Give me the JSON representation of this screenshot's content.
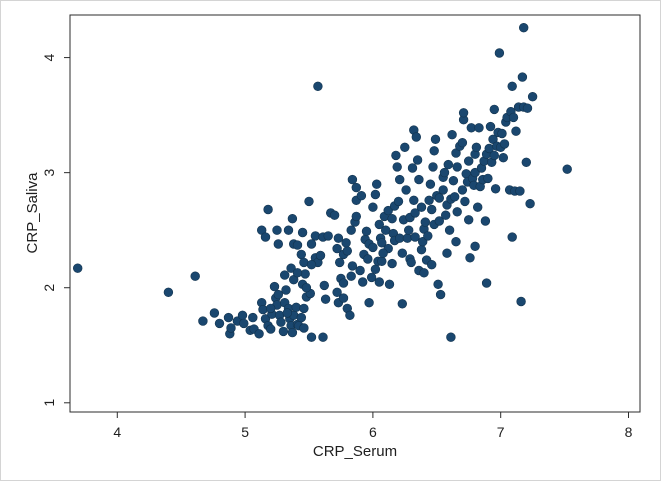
{
  "chart_data": {
    "type": "scatter",
    "xlabel": "CRP_Serum",
    "ylabel": "CRP_Saliva",
    "xlim": [
      3.63,
      8.09
    ],
    "ylim": [
      0.92,
      4.37
    ],
    "xticks": [
      4,
      5,
      6,
      7,
      8
    ],
    "yticks": [
      1,
      2,
      3,
      4
    ],
    "grid": false,
    "legend": "none",
    "marker": "circle",
    "marker_color": "#1a476f",
    "series": [
      {
        "points": [
          [
            3.69,
            2.17
          ],
          [
            4.4,
            1.96
          ],
          [
            4.61,
            2.1
          ],
          [
            4.67,
            1.71
          ],
          [
            4.76,
            1.78
          ],
          [
            4.8,
            1.69
          ],
          [
            4.87,
            1.74
          ],
          [
            4.88,
            1.6
          ],
          [
            4.89,
            1.65
          ],
          [
            4.94,
            1.71
          ],
          [
            4.98,
            1.76
          ],
          [
            4.99,
            1.69
          ],
          [
            5.04,
            1.63
          ],
          [
            5.06,
            1.74
          ],
          [
            5.07,
            1.64
          ],
          [
            5.11,
            1.6
          ],
          [
            5.13,
            1.87
          ],
          [
            5.14,
            1.81
          ],
          [
            5.16,
            1.73
          ],
          [
            5.18,
            1.67
          ],
          [
            5.2,
            1.64
          ],
          [
            5.21,
            1.77
          ],
          [
            5.23,
            2.01
          ],
          [
            5.24,
            1.91
          ],
          [
            5.25,
            1.85
          ],
          [
            5.27,
            1.76
          ],
          [
            5.28,
            1.7
          ],
          [
            5.3,
            1.62
          ],
          [
            5.31,
            1.87
          ],
          [
            5.32,
            1.98
          ],
          [
            5.34,
            1.82
          ],
          [
            5.35,
            1.73
          ],
          [
            5.36,
            1.67
          ],
          [
            5.37,
            1.61
          ],
          [
            5.38,
            1.76
          ],
          [
            5.4,
            1.83
          ],
          [
            5.41,
            1.68
          ],
          [
            5.42,
            1.67
          ],
          [
            5.44,
            1.74
          ],
          [
            5.46,
            1.82
          ],
          [
            5.46,
            1.65
          ],
          [
            5.48,
            1.92
          ],
          [
            5.51,
            1.95
          ],
          [
            5.52,
            1.57
          ],
          [
            5.61,
            1.57
          ],
          [
            5.2,
            1.82
          ],
          [
            5.26,
            1.94
          ],
          [
            5.33,
            1.78
          ],
          [
            5.18,
            2.68
          ],
          [
            5.13,
            2.5
          ],
          [
            5.16,
            2.44
          ],
          [
            5.25,
            2.5
          ],
          [
            5.26,
            2.38
          ],
          [
            5.37,
            2.6
          ],
          [
            5.34,
            2.5
          ],
          [
            5.38,
            2.38
          ],
          [
            5.36,
            2.17
          ],
          [
            5.41,
            2.37
          ],
          [
            5.45,
            2.48
          ],
          [
            5.44,
            2.29
          ],
          [
            5.46,
            2.22
          ],
          [
            5.47,
            2.12
          ],
          [
            5.5,
            2.75
          ],
          [
            5.52,
            2.38
          ],
          [
            5.55,
            2.45
          ],
          [
            5.55,
            2.26
          ],
          [
            5.57,
            2.22
          ],
          [
            5.59,
            2.28
          ],
          [
            5.61,
            2.44
          ],
          [
            5.62,
            2.02
          ],
          [
            5.63,
            1.9
          ],
          [
            5.65,
            2.45
          ],
          [
            5.31,
            2.11
          ],
          [
            5.38,
            2.07
          ],
          [
            5.41,
            2.13
          ],
          [
            5.45,
            2.03
          ],
          [
            5.48,
            2.0
          ],
          [
            5.52,
            2.2
          ],
          [
            5.57,
            3.75
          ],
          [
            5.67,
            2.65
          ],
          [
            5.7,
            2.63
          ],
          [
            5.73,
            2.43
          ],
          [
            5.72,
            2.34
          ],
          [
            5.74,
            2.22
          ],
          [
            5.77,
            2.29
          ],
          [
            5.72,
            1.96
          ],
          [
            5.75,
            2.08
          ],
          [
            5.77,
            2.04
          ],
          [
            5.73,
            1.87
          ],
          [
            5.77,
            1.91
          ],
          [
            5.8,
            1.82
          ],
          [
            5.82,
            1.76
          ],
          [
            5.83,
            2.1
          ],
          [
            5.84,
            2.19
          ],
          [
            5.8,
            2.32
          ],
          [
            5.79,
            2.39
          ],
          [
            5.83,
            2.5
          ],
          [
            5.86,
            2.57
          ],
          [
            5.87,
            2.62
          ],
          [
            5.87,
            2.76
          ],
          [
            5.87,
            2.87
          ],
          [
            5.84,
            2.94
          ],
          [
            5.91,
            2.8
          ],
          [
            5.94,
            2.42
          ],
          [
            5.93,
            2.29
          ],
          [
            5.95,
            2.49
          ],
          [
            5.97,
            2.38
          ],
          [
            5.97,
            1.87
          ],
          [
            5.99,
            2.09
          ],
          [
            6.0,
            2.7
          ],
          [
            6.02,
            2.81
          ],
          [
            6.03,
            2.9
          ],
          [
            6.02,
            2.16
          ],
          [
            6.04,
            2.23
          ],
          [
            6.06,
            2.43
          ],
          [
            6.07,
            2.39
          ],
          [
            6.07,
            2.23
          ],
          [
            6.09,
            2.62
          ],
          [
            6.1,
            2.5
          ],
          [
            6.12,
            2.34
          ],
          [
            6.12,
            2.67
          ],
          [
            6.13,
            2.03
          ],
          [
            6.15,
            2.21
          ],
          [
            6.16,
            2.47
          ],
          [
            6.17,
            2.41
          ],
          [
            6.17,
            2.71
          ],
          [
            6.18,
            3.15
          ],
          [
            6.19,
            3.05
          ],
          [
            6.21,
            2.94
          ],
          [
            6.21,
            2.43
          ],
          [
            6.23,
            2.3
          ],
          [
            6.23,
            1.86
          ],
          [
            6.24,
            2.59
          ],
          [
            6.25,
            3.22
          ],
          [
            6.26,
            2.85
          ],
          [
            6.27,
            2.43
          ],
          [
            6.29,
            2.61
          ],
          [
            6.29,
            2.25
          ],
          [
            6.3,
            2.22
          ],
          [
            6.31,
            3.04
          ],
          [
            6.32,
            2.76
          ],
          [
            6.32,
            3.37
          ],
          [
            6.33,
            2.44
          ],
          [
            6.34,
            3.31
          ],
          [
            6.35,
            3.11
          ],
          [
            6.36,
            2.94
          ],
          [
            6.36,
            2.15
          ],
          [
            6.38,
            2.33
          ],
          [
            6.39,
            2.4
          ],
          [
            6.4,
            2.51
          ],
          [
            6.41,
            2.57
          ],
          [
            6.42,
            2.24
          ],
          [
            5.9,
            2.15
          ],
          [
            5.92,
            2.05
          ],
          [
            5.96,
            2.25
          ],
          [
            6.0,
            2.35
          ],
          [
            6.05,
            2.05
          ],
          [
            6.08,
            2.3
          ],
          [
            6.05,
            2.55
          ],
          [
            6.15,
            2.6
          ],
          [
            6.2,
            2.75
          ],
          [
            6.28,
            2.5
          ],
          [
            6.33,
            2.65
          ],
          [
            6.38,
            2.7
          ],
          [
            6.43,
            2.45
          ],
          [
            6.44,
            2.76
          ],
          [
            6.45,
            2.9
          ],
          [
            6.46,
            2.68
          ],
          [
            6.46,
            2.2
          ],
          [
            6.4,
            2.13
          ],
          [
            6.47,
            3.05
          ],
          [
            6.48,
            3.19
          ],
          [
            6.48,
            2.55
          ],
          [
            6.49,
            3.29
          ],
          [
            6.5,
            2.8
          ],
          [
            6.51,
            2.03
          ],
          [
            6.52,
            2.58
          ],
          [
            6.52,
            2.78
          ],
          [
            6.53,
            1.94
          ],
          [
            6.55,
            2.96
          ],
          [
            6.55,
            2.85
          ],
          [
            6.56,
            3.0
          ],
          [
            6.57,
            2.63
          ],
          [
            6.58,
            2.72
          ],
          [
            6.58,
            2.3
          ],
          [
            6.59,
            3.07
          ],
          [
            6.6,
            2.5
          ],
          [
            6.61,
            2.77
          ],
          [
            6.61,
            1.57
          ],
          [
            6.62,
            3.33
          ],
          [
            6.63,
            2.93
          ],
          [
            6.64,
            2.79
          ],
          [
            6.65,
            3.17
          ],
          [
            6.65,
            2.4
          ],
          [
            6.66,
            2.66
          ],
          [
            6.66,
            3.05
          ],
          [
            6.68,
            3.23
          ],
          [
            6.7,
            2.85
          ],
          [
            6.7,
            3.26
          ],
          [
            6.71,
            3.46
          ],
          [
            6.71,
            3.52
          ],
          [
            6.72,
            2.75
          ],
          [
            6.73,
            2.99
          ],
          [
            6.74,
            2.92
          ],
          [
            6.75,
            3.1
          ],
          [
            6.75,
            2.59
          ],
          [
            6.76,
            2.26
          ],
          [
            6.77,
            3.39
          ],
          [
            6.78,
            2.95
          ],
          [
            6.79,
            2.89
          ],
          [
            6.8,
            3.0
          ],
          [
            6.8,
            3.16
          ],
          [
            6.8,
            2.36
          ],
          [
            6.81,
            3.22
          ],
          [
            6.82,
            2.7
          ],
          [
            6.83,
            3.39
          ],
          [
            6.84,
            2.88
          ],
          [
            6.85,
            3.04
          ],
          [
            6.86,
            2.94
          ],
          [
            6.87,
            3.1
          ],
          [
            6.88,
            2.58
          ],
          [
            6.89,
            2.04
          ],
          [
            6.89,
            3.16
          ],
          [
            6.9,
            2.95
          ],
          [
            6.91,
            3.21
          ],
          [
            6.92,
            3.4
          ],
          [
            6.93,
            3.09
          ],
          [
            6.94,
            3.29
          ],
          [
            6.95,
            3.55
          ],
          [
            6.95,
            3.15
          ],
          [
            6.96,
            2.86
          ],
          [
            6.97,
            3.23
          ],
          [
            6.98,
            3.35
          ],
          [
            6.99,
            4.04
          ],
          [
            7.0,
            3.22
          ],
          [
            7.01,
            3.34
          ],
          [
            7.02,
            3.13
          ],
          [
            7.03,
            3.25
          ],
          [
            7.04,
            3.44
          ],
          [
            7.05,
            3.48
          ],
          [
            7.07,
            2.85
          ],
          [
            7.08,
            3.53
          ],
          [
            7.09,
            3.75
          ],
          [
            7.09,
            2.44
          ],
          [
            7.1,
            3.48
          ],
          [
            7.11,
            2.84
          ],
          [
            7.12,
            3.36
          ],
          [
            7.14,
            3.57
          ],
          [
            7.15,
            2.84
          ],
          [
            7.16,
            1.88
          ],
          [
            7.17,
            3.83
          ],
          [
            7.18,
            3.57
          ],
          [
            7.18,
            4.26
          ],
          [
            7.2,
            3.09
          ],
          [
            7.21,
            3.56
          ],
          [
            7.23,
            2.73
          ],
          [
            7.25,
            3.66
          ],
          [
            7.52,
            3.03
          ]
        ]
      }
    ]
  }
}
